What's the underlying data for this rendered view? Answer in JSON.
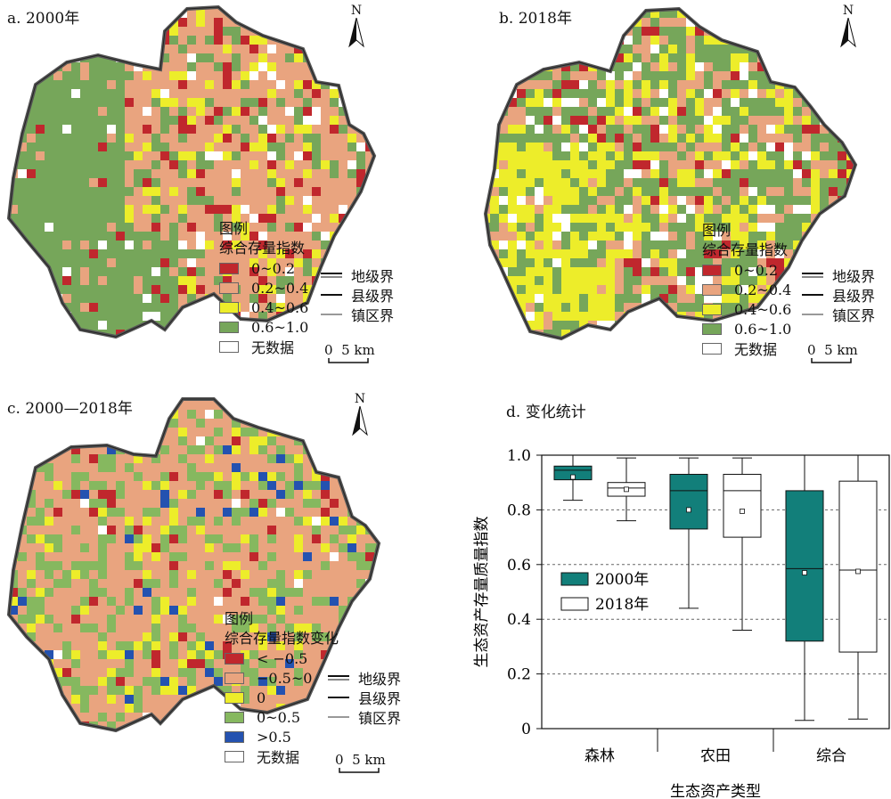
{
  "panels": {
    "a": {
      "title": "a. 2000年"
    },
    "b": {
      "title": "b. 2018年"
    },
    "c": {
      "title": "c. 2000—2018年"
    },
    "d": {
      "title": "d. 变化统计"
    }
  },
  "legend_status": {
    "heading1": "图例",
    "heading2": "综合存量指数",
    "classes": [
      {
        "label": "0~0.2",
        "color": "#c0272d"
      },
      {
        "label": "0.2~0.4",
        "color": "#e9a47f"
      },
      {
        "label": "0.4~0.6",
        "color": "#eded2a"
      },
      {
        "label": "0.6~1.0",
        "color": "#76a65a"
      },
      {
        "label": "无数据",
        "color": "#ffffff"
      }
    ]
  },
  "legend_change": {
    "heading1": "图例",
    "heading2": "综合存量指数变化",
    "classes": [
      {
        "label": "< −0.5",
        "color": "#c0272d"
      },
      {
        "label": "−0.5~0",
        "color": "#e9a47f"
      },
      {
        "label": "0",
        "color": "#eded2a"
      },
      {
        "label": "0~0.5",
        "color": "#86b85f"
      },
      {
        "label": ">0.5",
        "color": "#2452b0"
      },
      {
        "label": "无数据",
        "color": "#ffffff"
      }
    ]
  },
  "boundaries": [
    {
      "label": "地级界",
      "style": "double"
    },
    {
      "label": "县级界",
      "style": "solid"
    },
    {
      "label": "镇区界",
      "style": "thin"
    }
  ],
  "scale_bar": {
    "zero": "0",
    "label": "5 km"
  },
  "north_label": "N",
  "chart_data": {
    "type": "box",
    "categories": [
      "森林",
      "农田",
      "综合"
    ],
    "xlabel": "生态资产类型",
    "ylabel": "生态资产存量质量指数",
    "ylim": [
      0,
      1.0
    ],
    "yticks": [
      "0",
      "0.2",
      "0.4",
      "0.6",
      "0.8",
      "1.0"
    ],
    "grid": "horizontal-dashed",
    "legend_position": "left-middle",
    "series": [
      {
        "name": "2000年",
        "color": "#127f7a",
        "boxes": [
          {
            "min": 0.835,
            "q1": 0.91,
            "median": 0.945,
            "mean": 0.92,
            "q3": 0.96,
            "max": 1.0
          },
          {
            "min": 0.44,
            "q1": 0.73,
            "median": 0.87,
            "mean": 0.8,
            "q3": 0.93,
            "max": 0.99
          },
          {
            "min": 0.03,
            "q1": 0.32,
            "median": 0.585,
            "mean": 0.57,
            "q3": 0.87,
            "max": 1.0
          }
        ]
      },
      {
        "name": "2018年",
        "color": "#ffffff",
        "boxes": [
          {
            "min": 0.76,
            "q1": 0.85,
            "median": 0.88,
            "mean": 0.875,
            "q3": 0.9,
            "max": 0.99
          },
          {
            "min": 0.36,
            "q1": 0.7,
            "median": 0.87,
            "mean": 0.795,
            "q3": 0.93,
            "max": 0.99
          },
          {
            "min": 0.035,
            "q1": 0.28,
            "median": 0.58,
            "mean": 0.575,
            "q3": 0.905,
            "max": 1.0
          }
        ]
      }
    ]
  }
}
